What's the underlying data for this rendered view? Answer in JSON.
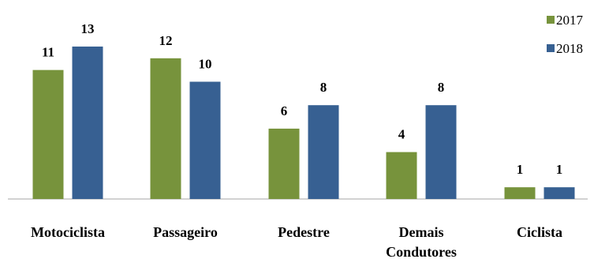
{
  "chart_data": {
    "type": "bar",
    "categories": [
      "Motociclista",
      "Passageiro",
      "Pedestre",
      "Demais Condutores",
      "Ciclista"
    ],
    "category_lines": [
      [
        "Motociclista"
      ],
      [
        "Passageiro"
      ],
      [
        "Pedestre"
      ],
      [
        "Demais",
        "Condutores"
      ],
      [
        "Ciclista"
      ]
    ],
    "series": [
      {
        "name": "2017",
        "color": "#77933c",
        "values": [
          11,
          12,
          6,
          4,
          1
        ]
      },
      {
        "name": "2018",
        "color": "#376092",
        "values": [
          13,
          10,
          8,
          8,
          1
        ]
      }
    ],
    "ylim": [
      0,
      13
    ],
    "grid": false,
    "data_labels": true,
    "legend_position": "top-right",
    "title": "",
    "xlabel": "",
    "ylabel": ""
  }
}
